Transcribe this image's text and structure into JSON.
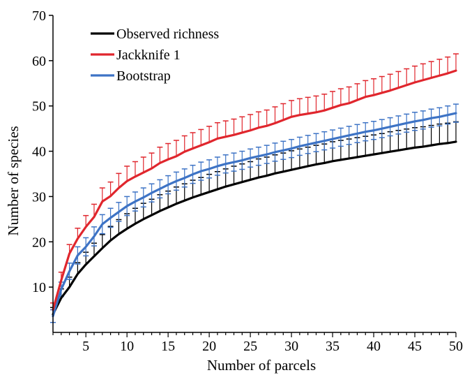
{
  "chart_data": {
    "type": "line",
    "title": "",
    "xlabel": "Number of parcels",
    "ylabel": "Number of species",
    "xlim": [
      0,
      50
    ],
    "ylim": [
      0,
      70
    ],
    "x_ticks": [
      5,
      10,
      15,
      20,
      25,
      30,
      35,
      40,
      45,
      50
    ],
    "y_ticks": [
      10,
      20,
      30,
      40,
      50,
      60,
      70
    ],
    "grid": false,
    "legend_position": "top-left",
    "x": [
      1,
      2,
      3,
      4,
      5,
      6,
      7,
      8,
      9,
      10,
      11,
      12,
      13,
      14,
      15,
      16,
      17,
      18,
      19,
      20,
      21,
      22,
      23,
      24,
      25,
      26,
      27,
      28,
      29,
      30,
      31,
      32,
      33,
      34,
      35,
      36,
      37,
      38,
      39,
      40,
      41,
      42,
      43,
      44,
      45,
      46,
      47,
      48,
      49,
      50
    ],
    "series": [
      {
        "name": "Observed richness",
        "color": "#000000",
        "error_cap_color": "#000000",
        "values": [
          4.0,
          7.6,
          10.0,
          12.9,
          15.0,
          16.8,
          18.6,
          20.3,
          21.7,
          22.9,
          24.0,
          25.0,
          25.9,
          26.8,
          27.6,
          28.4,
          29.1,
          29.8,
          30.4,
          31.0,
          31.6,
          32.2,
          32.7,
          33.2,
          33.7,
          34.2,
          34.6,
          35.1,
          35.5,
          35.9,
          36.3,
          36.7,
          37.1,
          37.4,
          37.8,
          38.1,
          38.4,
          38.7,
          39.0,
          39.3,
          39.6,
          39.9,
          40.2,
          40.5,
          40.8,
          41.0,
          41.3,
          41.6,
          41.8,
          42.1
        ],
        "error": [
          1.5,
          2.0,
          2.2,
          2.5,
          2.7,
          2.9,
          3.0,
          3.1,
          3.2,
          3.3,
          3.4,
          3.5,
          3.5,
          3.6,
          3.6,
          3.7,
          3.7,
          3.8,
          3.8,
          3.9,
          3.9,
          3.9,
          4.0,
          4.0,
          4.0,
          4.1,
          4.1,
          4.1,
          4.1,
          4.2,
          4.2,
          4.2,
          4.2,
          4.2,
          4.3,
          4.3,
          4.3,
          4.3,
          4.3,
          4.3,
          4.3,
          4.4,
          4.4,
          4.4,
          4.4,
          4.4,
          4.4,
          4.4,
          4.4,
          4.4
        ]
      },
      {
        "name": "Jackknife 1",
        "color": "#e0262d",
        "error_cap_color": "#e0262d",
        "values": [
          5.0,
          11.5,
          17.4,
          20.7,
          23.3,
          25.5,
          28.9,
          30.1,
          31.9,
          33.4,
          34.4,
          35.3,
          36.2,
          37.4,
          38.2,
          38.9,
          39.9,
          40.6,
          41.3,
          42.0,
          42.8,
          43.2,
          43.6,
          44.1,
          44.6,
          45.2,
          45.6,
          46.2,
          46.9,
          47.6,
          48.0,
          48.3,
          48.6,
          49.0,
          49.6,
          50.2,
          50.6,
          51.3,
          52.0,
          52.4,
          52.9,
          53.4,
          54.0,
          54.6,
          55.2,
          55.7,
          56.2,
          56.7,
          57.2,
          57.8
        ],
        "error": [
          1.5,
          1.8,
          2.0,
          2.3,
          2.5,
          2.8,
          3.0,
          3.1,
          3.2,
          3.3,
          3.3,
          3.4,
          3.4,
          3.5,
          3.5,
          3.5,
          3.5,
          3.5,
          3.5,
          3.5,
          3.5,
          3.5,
          3.5,
          3.5,
          3.5,
          3.5,
          3.5,
          3.6,
          3.6,
          3.6,
          3.6,
          3.6,
          3.6,
          3.6,
          3.6,
          3.6,
          3.6,
          3.6,
          3.6,
          3.6,
          3.6,
          3.6,
          3.6,
          3.6,
          3.6,
          3.6,
          3.6,
          3.6,
          3.6,
          3.7
        ]
      },
      {
        "name": "Bootstrap",
        "color": "#3d73c5",
        "error_cap_color": "#3d73c5",
        "values": [
          3.6,
          9.5,
          13.5,
          17.0,
          18.9,
          21.2,
          23.9,
          25.3,
          26.6,
          27.9,
          28.9,
          29.8,
          30.8,
          31.7,
          32.6,
          33.4,
          34.1,
          34.9,
          35.6,
          36.1,
          36.7,
          37.2,
          37.6,
          38.0,
          38.5,
          38.9,
          39.3,
          39.8,
          40.2,
          40.6,
          41.1,
          41.5,
          41.9,
          42.3,
          42.7,
          43.1,
          43.5,
          43.9,
          44.3,
          44.6,
          45.0,
          45.4,
          45.8,
          46.2,
          46.6,
          46.9,
          47.3,
          47.6,
          48.0,
          48.4
        ],
        "error": [
          1.4,
          1.6,
          1.8,
          1.9,
          2.0,
          2.1,
          2.1,
          2.1,
          2.1,
          2.1,
          2.1,
          2.1,
          2.0,
          2.0,
          2.0,
          2.0,
          2.0,
          2.0,
          2.0,
          2.0,
          2.0,
          2.0,
          2.0,
          2.0,
          2.0,
          2.0,
          2.0,
          2.0,
          2.0,
          2.0,
          2.0,
          2.0,
          2.0,
          2.0,
          2.0,
          2.0,
          2.0,
          2.0,
          2.0,
          2.0,
          2.0,
          2.0,
          2.0,
          2.0,
          2.0,
          2.0,
          2.0,
          2.0,
          2.0,
          2.0
        ]
      }
    ]
  }
}
